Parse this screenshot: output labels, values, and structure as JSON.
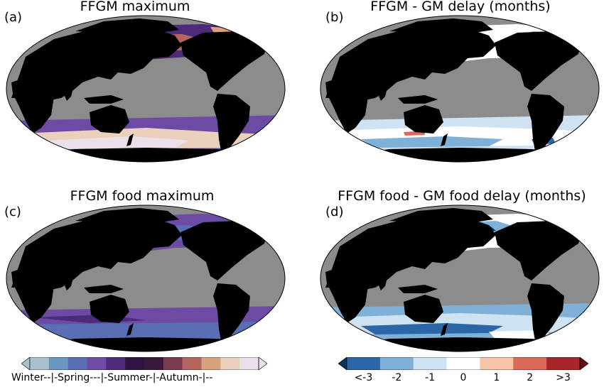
{
  "panels": [
    {
      "label": "(a)",
      "title": "FFGM maximum",
      "variant": "phase_max"
    },
    {
      "label": "(b)",
      "title": "FFGM - GM delay (months)",
      "variant": "delay"
    },
    {
      "label": "(c)",
      "title": "FFGM food maximum",
      "variant": "phase_food"
    },
    {
      "label": "(d)",
      "title": "FFGM food - GM food delay (months)",
      "variant": "delay_food"
    }
  ],
  "seasonal_colorbar": {
    "colors": [
      "#a9c1cc",
      "#6b96c2",
      "#5a6fb3",
      "#6d4aa3",
      "#4e2a7a",
      "#2e1440",
      "#3a1a3a",
      "#7a3a52",
      "#b5655e",
      "#d9a27f",
      "#ebd0be",
      "#ebe0ea"
    ],
    "season_labels": [
      "Winter",
      "Spring",
      "Summer",
      "Autumn"
    ],
    "label_text": "Winter--|-Spring---|-Summer-|-Autumn-|--"
  },
  "delay_colorbar": {
    "colors": [
      "#0b2f5e",
      "#2b66a6",
      "#7fb0d8",
      "#cfe2f1",
      "#ffffff",
      "#f6c4a8",
      "#d96a59",
      "#a8252b",
      "#670a18"
    ],
    "tick_labels": [
      "<-3",
      "-2",
      "-1",
      "0",
      "1",
      "2",
      ">3"
    ]
  },
  "map_colors": {
    "land": "#000000",
    "masked_ocean": "#8c8c8c"
  }
}
